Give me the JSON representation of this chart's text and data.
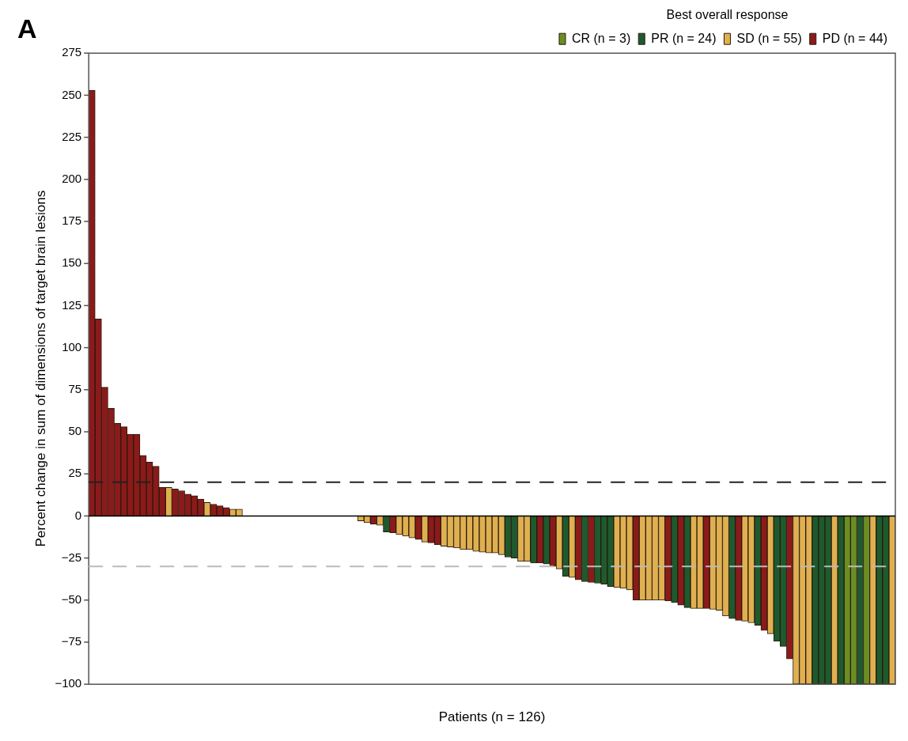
{
  "chart_data": {
    "type": "bar",
    "stacked": true,
    "xlabel": "Patients (n = 126)",
    "ylabel": "Percent change in sum of dimensions of target brain lesions",
    "legend_title": "Best overall response",
    "legend": "top right",
    "annotations": [
      "A"
    ],
    "categories": [
      null,
      null,
      null,
      null,
      null,
      null,
      null,
      null,
      null,
      null,
      null,
      null,
      null,
      null,
      null,
      null,
      null,
      null,
      null,
      null,
      null,
      null,
      null,
      null,
      null,
      null,
      null,
      null,
      null,
      null,
      null,
      null,
      null,
      null,
      null,
      null,
      null,
      null,
      null,
      null,
      null,
      null,
      null,
      null,
      null,
      null,
      null,
      null,
      null,
      null,
      null,
      null,
      null,
      null,
      null,
      null,
      null,
      null,
      null,
      null,
      null,
      null,
      null,
      null,
      null,
      null,
      null,
      null,
      null,
      null,
      null,
      null,
      null,
      null,
      null,
      null,
      null,
      null,
      null,
      null,
      null,
      null,
      null,
      null,
      null,
      null,
      null,
      null,
      null,
      null,
      null,
      null,
      null,
      null,
      null,
      null,
      null,
      null,
      null,
      null,
      null,
      null,
      null,
      null,
      null,
      null,
      null,
      null,
      null,
      null,
      null,
      null,
      null,
      null,
      null,
      null,
      null,
      null,
      null,
      null,
      null,
      null,
      null,
      null,
      null,
      null
    ],
    "ylim": [
      -100,
      275
    ],
    "yticks": [
      -100,
      -75,
      -50,
      -25,
      0,
      25,
      50,
      75,
      100,
      125,
      150,
      175,
      200,
      225,
      250,
      275
    ],
    "ref_lines": [
      {
        "axis": "y",
        "value": 20,
        "label": null,
        "color": "#222222",
        "line_style": "dashed"
      },
      {
        "axis": "y",
        "value": -30,
        "label": null,
        "color": "#bbbbbb",
        "line_style": "dashed"
      }
    ],
    "series": [
      {
        "name": "CR (n = 3)",
        "color": "#6b8e23",
        "values": [
          null,
          null,
          null,
          null,
          null,
          null,
          null,
          null,
          null,
          null,
          null,
          null,
          null,
          null,
          null,
          null,
          null,
          null,
          null,
          null,
          null,
          null,
          null,
          null,
          null,
          null,
          null,
          null,
          null,
          null,
          null,
          null,
          null,
          null,
          null,
          null,
          null,
          null,
          null,
          null,
          null,
          null,
          null,
          null,
          null,
          null,
          null,
          null,
          null,
          null,
          null,
          null,
          null,
          null,
          null,
          null,
          null,
          null,
          null,
          null,
          null,
          null,
          null,
          null,
          null,
          null,
          null,
          null,
          null,
          null,
          null,
          null,
          null,
          null,
          null,
          null,
          null,
          null,
          null,
          null,
          null,
          null,
          null,
          null,
          null,
          null,
          null,
          null,
          null,
          null,
          null,
          null,
          null,
          null,
          null,
          null,
          null,
          null,
          null,
          null,
          null,
          null,
          null,
          null,
          null,
          null,
          null,
          null,
          null,
          null,
          null,
          null,
          null,
          null,
          null,
          null,
          null,
          null,
          -100,
          -100,
          null,
          -100,
          null,
          null,
          null,
          null
        ]
      },
      {
        "name": "PR (n = 24)",
        "color": "#1e5a2e",
        "values": [
          null,
          null,
          null,
          null,
          null,
          null,
          null,
          null,
          null,
          null,
          null,
          null,
          null,
          null,
          null,
          null,
          null,
          null,
          null,
          null,
          null,
          null,
          null,
          null,
          null,
          null,
          null,
          null,
          null,
          null,
          null,
          null,
          null,
          null,
          null,
          null,
          null,
          null,
          null,
          null,
          null,
          null,
          null,
          null,
          null,
          null,
          -9.5,
          null,
          null,
          null,
          null,
          null,
          null,
          null,
          null,
          null,
          null,
          null,
          null,
          null,
          null,
          null,
          null,
          null,
          null,
          -24.5,
          -25,
          null,
          null,
          -28,
          null,
          -28.5,
          null,
          null,
          -36,
          null,
          null,
          -39,
          null,
          -40,
          -40.5,
          -42,
          null,
          null,
          null,
          null,
          null,
          null,
          null,
          null,
          null,
          -51.5,
          null,
          -54.5,
          null,
          null,
          null,
          null,
          null,
          null,
          -61,
          null,
          null,
          null,
          -65,
          null,
          null,
          -74.5,
          -77.5,
          null,
          null,
          null,
          null,
          -100,
          -100,
          -100,
          null,
          -100,
          null,
          null,
          -100,
          null,
          null,
          -100,
          -100,
          null
        ]
      },
      {
        "name": "SD (n = 55)",
        "color": "#e0b050",
        "values": [
          null,
          null,
          null,
          null,
          null,
          null,
          null,
          null,
          null,
          null,
          null,
          null,
          17,
          null,
          null,
          null,
          null,
          null,
          8,
          null,
          null,
          null,
          4,
          4,
          0,
          0,
          0,
          0,
          0,
          0,
          0,
          0,
          0,
          0,
          0,
          0,
          0,
          0,
          0,
          0,
          0,
          0,
          -3,
          -4,
          null,
          -5.5,
          null,
          null,
          -11,
          -12,
          -13,
          null,
          -15.5,
          null,
          null,
          -18,
          -18.5,
          -19,
          -20,
          -20,
          -21,
          -21.5,
          -22,
          -22,
          -23,
          null,
          null,
          -27,
          -27,
          null,
          null,
          null,
          null,
          -31.5,
          null,
          -36.5,
          null,
          null,
          null,
          null,
          null,
          null,
          -42.5,
          -43,
          -44,
          null,
          -50,
          -50,
          -50,
          -50,
          null,
          null,
          null,
          null,
          -55,
          -55,
          null,
          -55.5,
          -56,
          -59.5,
          null,
          null,
          -62.5,
          -63.5,
          null,
          null,
          -70,
          null,
          null,
          null,
          -100,
          -100,
          -100,
          null,
          null,
          null,
          -100,
          null,
          null,
          null,
          null,
          null,
          -100,
          null,
          null,
          -100
        ]
      },
      {
        "name": "PD (n = 44)",
        "color": "#8b1a1a",
        "values": [
          253,
          117,
          76.5,
          64,
          55,
          53,
          48.5,
          48.5,
          36,
          32,
          29.5,
          17,
          null,
          16,
          15,
          13,
          12,
          10,
          null,
          7,
          6,
          5,
          null,
          null,
          null,
          null,
          null,
          null,
          null,
          null,
          null,
          null,
          null,
          null,
          null,
          null,
          null,
          null,
          null,
          null,
          null,
          null,
          null,
          null,
          -5,
          null,
          null,
          -10,
          null,
          null,
          null,
          -14,
          null,
          -16,
          -17,
          null,
          null,
          null,
          null,
          null,
          null,
          null,
          null,
          null,
          null,
          null,
          null,
          null,
          null,
          null,
          -28,
          null,
          -30,
          null,
          null,
          null,
          -38,
          null,
          -39.5,
          null,
          null,
          null,
          null,
          null,
          null,
          -50,
          null,
          null,
          null,
          null,
          -50.5,
          null,
          -53,
          null,
          null,
          null,
          -55,
          null,
          null,
          null,
          null,
          -62,
          null,
          null,
          null,
          -68,
          null,
          null,
          null,
          -85,
          null,
          null,
          null,
          null,
          null,
          null,
          null,
          null,
          null,
          null,
          null,
          null,
          null,
          null,
          null,
          null
        ]
      }
    ]
  }
}
